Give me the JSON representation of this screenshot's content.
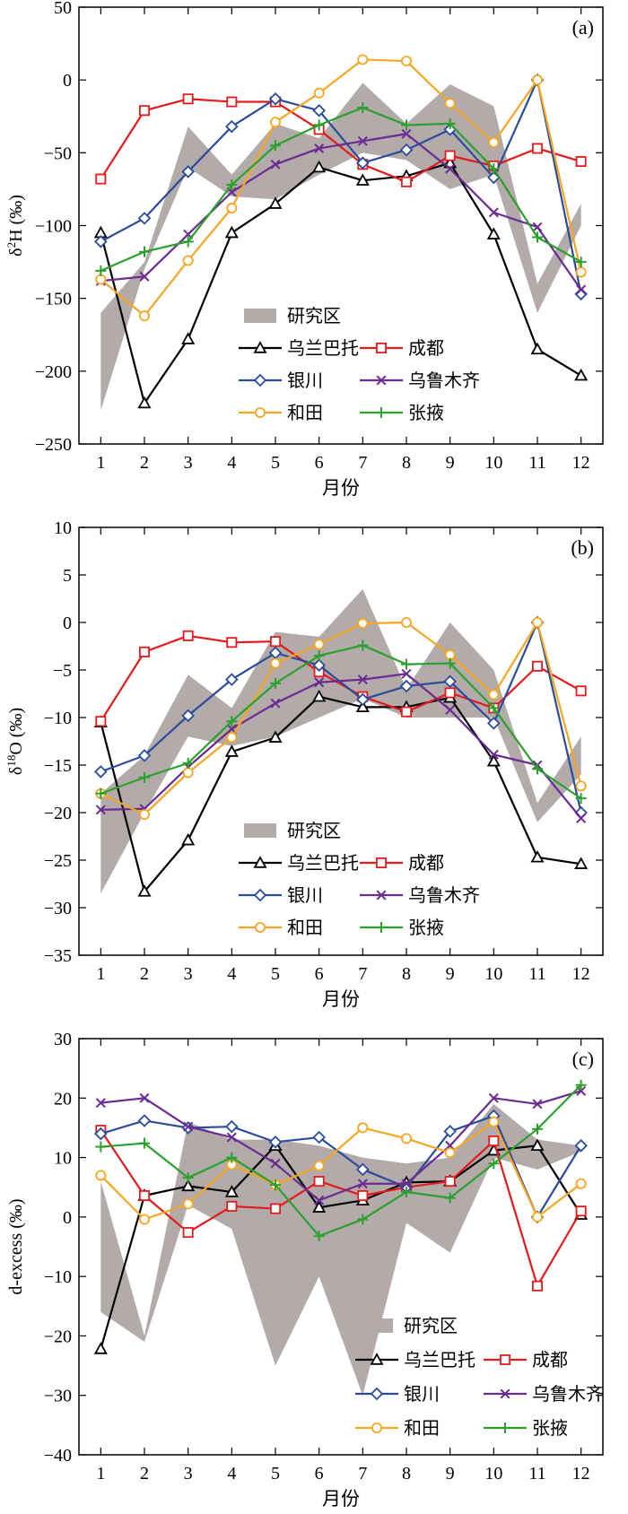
{
  "months": [
    "1",
    "2",
    "3",
    "4",
    "5",
    "6",
    "7",
    "8",
    "9",
    "10",
    "11",
    "12"
  ],
  "series_styles": {
    "乌兰巴托": {
      "color": "#000000",
      "marker": "triangle"
    },
    "成都": {
      "color": "#e41a1c",
      "marker": "square"
    },
    "银川": {
      "color": "#2b4c9b",
      "marker": "diamond"
    },
    "乌鲁木齐": {
      "color": "#6a2c91",
      "marker": "x"
    },
    "和田": {
      "color": "#f5a623",
      "marker": "circle"
    },
    "张掖": {
      "color": "#2ca02c",
      "marker": "plus"
    }
  },
  "band_color": "#b3aaaa",
  "chart_data": [
    {
      "type": "line",
      "panel_label": "(a)",
      "xlabel": "月份",
      "ylabel": "δ²H (‰)",
      "ylabel_prefix": "δ",
      "ylabel_sup": "2",
      "ylabel_suffix": "H (‰)",
      "xlim": [
        0.5,
        12.5
      ],
      "ylim": [
        -250,
        50
      ],
      "yticks": [
        50,
        0,
        -50,
        -100,
        -150,
        -200,
        -250
      ],
      "yticks_text": [
        "50",
        "0",
        "−50",
        "−100",
        "−150",
        "−200",
        "−250"
      ],
      "categories": [
        "1",
        "2",
        "3",
        "4",
        "5",
        "6",
        "7",
        "8",
        "9",
        "10",
        "11",
        "12"
      ],
      "band": {
        "name": "研究区",
        "upper": [
          -160,
          -125,
          -32,
          -65,
          -30,
          -40,
          -2,
          -30,
          -3,
          -18,
          -140,
          -85
        ],
        "lower": [
          -227,
          -130,
          -60,
          -80,
          -82,
          -65,
          -50,
          -55,
          -75,
          -65,
          -160,
          -100
        ]
      },
      "series": [
        {
          "name": "乌兰巴托",
          "values": [
            -105,
            -222,
            -178,
            -105,
            -85,
            -60,
            -69,
            -66,
            -57,
            -106,
            -185,
            -203
          ]
        },
        {
          "name": "成都",
          "values": [
            -68,
            -21,
            -13,
            -15,
            -15,
            -34,
            -58,
            -70,
            -52,
            -59,
            -47,
            -56
          ]
        },
        {
          "name": "银川",
          "values": [
            -111,
            -95,
            -63,
            -32,
            -13,
            -21,
            -57,
            -48,
            -34,
            -67,
            0,
            -147
          ]
        },
        {
          "name": "乌鲁木齐",
          "values": [
            -138,
            -135,
            -106,
            -77,
            -58,
            -47,
            -42,
            -37,
            -61,
            -91,
            -101,
            -144
          ]
        },
        {
          "name": "和田",
          "values": [
            -137,
            -162,
            -124,
            -88,
            -29,
            -9,
            14,
            13,
            -16,
            -43,
            0,
            -132
          ]
        },
        {
          "name": "张掖",
          "values": [
            -131,
            -118,
            -111,
            -72,
            -45,
            -31,
            -19,
            -31,
            -30,
            -61,
            -108,
            -125
          ]
        }
      ],
      "legend_position": "bottom-center"
    },
    {
      "type": "line",
      "panel_label": "(b)",
      "xlabel": "月份",
      "ylabel": "δ¹⁸O (‰)",
      "ylabel_prefix": "δ",
      "ylabel_sup": "18",
      "ylabel_suffix": "O (‰)",
      "xlim": [
        0.5,
        12.5
      ],
      "ylim": [
        -35,
        10
      ],
      "yticks": [
        10,
        5,
        0,
        -5,
        -10,
        -15,
        -20,
        -25,
        -30,
        -35
      ],
      "yticks_text": [
        "10",
        "5",
        "0",
        "−5",
        "−10",
        "−15",
        "−20",
        "−25",
        "−30",
        "−35"
      ],
      "categories": [
        "1",
        "2",
        "3",
        "4",
        "5",
        "6",
        "7",
        "8",
        "9",
        "10",
        "11",
        "12"
      ],
      "band": {
        "name": "研究区",
        "upper": [
          -18,
          -14,
          -5.5,
          -9,
          -1,
          -1.5,
          3.5,
          -7,
          0,
          -5,
          -19,
          -12
        ],
        "lower": [
          -28.5,
          -20,
          -12,
          -13,
          -12,
          -10,
          -8,
          -10,
          -10,
          -10,
          -21,
          -16
        ]
      },
      "series": [
        {
          "name": "乌兰巴托",
          "values": [
            -10.5,
            -28.3,
            -22.9,
            -13.6,
            -12.1,
            -7.8,
            -8.9,
            -8.9,
            -7.9,
            -14.6,
            -24.7,
            -25.4
          ]
        },
        {
          "name": "成都",
          "values": [
            -10.4,
            -3.1,
            -1.4,
            -2.1,
            -2.0,
            -5.2,
            -7.8,
            -9.4,
            -7.4,
            -9.0,
            -4.6,
            -7.2
          ]
        },
        {
          "name": "银川",
          "values": [
            -15.7,
            -14.0,
            -9.8,
            -6.0,
            -3.2,
            -4.5,
            -8.1,
            -6.7,
            -6.2,
            -10.6,
            0,
            -20.0
          ]
        },
        {
          "name": "乌鲁木齐",
          "values": [
            -19.7,
            -19.6,
            -15.2,
            -11.2,
            -8.5,
            -6.3,
            -6.0,
            -5.4,
            -9.2,
            -13.9,
            -15.0,
            -20.6
          ]
        },
        {
          "name": "和田",
          "values": [
            -18.0,
            -20.2,
            -15.8,
            -12.1,
            -4.3,
            -2.3,
            -0.1,
            0,
            -3.4,
            -7.6,
            0,
            -17.2
          ]
        },
        {
          "name": "张掖",
          "values": [
            -18.0,
            -16.3,
            -14.8,
            -10.4,
            -6.4,
            -3.5,
            -2.4,
            -4.4,
            -4.3,
            -9.0,
            -15.4,
            -18.5
          ]
        }
      ],
      "legend_position": "bottom-center"
    },
    {
      "type": "line",
      "panel_label": "(c)",
      "xlabel": "月份",
      "ylabel": "d-excess (‰)",
      "ylabel_prefix": "",
      "ylabel_sup": "",
      "ylabel_suffix": "d-excess (‰)",
      "xlim": [
        0.5,
        12.5
      ],
      "ylim": [
        -40,
        30
      ],
      "yticks": [
        30,
        20,
        10,
        0,
        -10,
        -20,
        -30,
        -40
      ],
      "yticks_text": [
        "30",
        "20",
        "10",
        "0",
        "−10",
        "−20",
        "−30",
        "−40"
      ],
      "categories": [
        "1",
        "2",
        "3",
        "4",
        "5",
        "6",
        "7",
        "8",
        "9",
        "10",
        "11",
        "12"
      ],
      "band": {
        "name": "研究区",
        "upper": [
          6,
          -20,
          16,
          13,
          13,
          12,
          10,
          9,
          10,
          19,
          13,
          12
        ],
        "lower": [
          -16,
          -21,
          2,
          -2,
          -25,
          -10,
          -30,
          -1,
          -6,
          10,
          8,
          11
        ]
      },
      "series": [
        {
          "name": "乌兰巴托",
          "values": [
            -22.2,
            3.6,
            5.2,
            4.2,
            12.0,
            1.6,
            2.8,
            5.8,
            6.0,
            11.2,
            12.0,
            0.4
          ]
        },
        {
          "name": "成都",
          "values": [
            14.6,
            3.6,
            -2.6,
            1.8,
            1.4,
            6.0,
            3.6,
            5.0,
            6.0,
            12.8,
            -11.6,
            1.0
          ]
        },
        {
          "name": "银川",
          "values": [
            14.0,
            16.2,
            15.0,
            15.2,
            12.6,
            13.4,
            8.0,
            5.0,
            14.4,
            17.0,
            0,
            12.0
          ]
        },
        {
          "name": "乌鲁木齐",
          "values": [
            19.2,
            20.0,
            15.2,
            13.4,
            9.0,
            2.8,
            5.6,
            5.6,
            12.0,
            20.0,
            19.0,
            21.2
          ]
        },
        {
          "name": "和田",
          "values": [
            7.0,
            -0.4,
            2.2,
            8.8,
            5.4,
            8.6,
            15.0,
            13.2,
            10.8,
            16.0,
            0,
            5.6
          ]
        },
        {
          "name": "张掖",
          "values": [
            11.8,
            12.4,
            6.6,
            10.0,
            5.4,
            -3.2,
            -0.4,
            4.2,
            3.2,
            9.0,
            14.8,
            22.2
          ]
        }
      ],
      "legend_position": "bottom-right"
    }
  ]
}
